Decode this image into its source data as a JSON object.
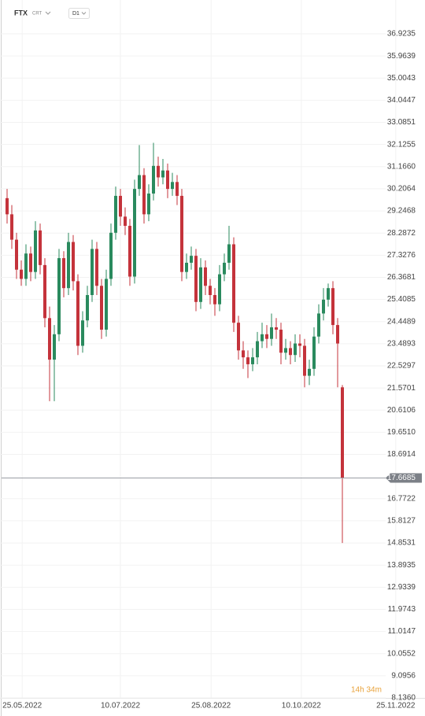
{
  "chart_data": {
    "type": "candlestick",
    "title": "FTX",
    "subtitle": "CRT",
    "timeframe": "D1",
    "open": [
      29.8,
      29.1,
      28.0,
      26.7,
      26.3,
      27.4,
      26.6,
      28.4,
      26.9,
      24.6,
      22.8,
      23.9,
      27.2,
      25.9,
      27.9,
      26.2,
      23.4,
      24.5,
      25.6,
      27.6,
      26.0,
      24.1,
      26.3,
      28.3,
      29.9,
      29.0,
      28.6,
      26.4,
      30.2,
      30.8,
      29.1,
      30.0,
      31.2,
      30.7,
      31.0,
      30.2,
      30.5,
      29.9,
      26.6,
      27.0,
      27.3,
      25.3,
      26.8,
      26.0,
      25.6,
      25.2,
      26.5,
      27.0,
      27.8,
      24.4,
      23.2,
      22.9,
      22.6,
      22.9,
      23.6,
      23.9,
      23.7,
      24.2,
      24.1,
      23.1,
      23.3,
      23.0,
      23.5,
      23.4,
      22.1,
      22.4,
      23.8,
      24.8,
      25.4,
      25.9,
      24.3,
      21.6
    ],
    "high": [
      30.2,
      29.5,
      28.3,
      27.1,
      27.8,
      27.7,
      28.8,
      28.7,
      27.2,
      25.1,
      24.3,
      27.6,
      27.5,
      28.3,
      28.2,
      26.5,
      24.9,
      26.0,
      28.0,
      27.9,
      26.3,
      26.7,
      28.7,
      30.3,
      30.2,
      29.4,
      28.9,
      30.6,
      32.1,
      31.1,
      30.4,
      32.2,
      31.6,
      31.5,
      31.3,
      30.9,
      30.8,
      30.2,
      27.4,
      27.7,
      27.6,
      27.2,
      27.1,
      26.3,
      25.9,
      26.9,
      27.4,
      28.6,
      28.1,
      24.7,
      23.6,
      23.2,
      23.3,
      24.0,
      24.4,
      24.3,
      24.8,
      24.6,
      24.4,
      23.7,
      23.6,
      23.9,
      23.9,
      23.7,
      22.8,
      24.2,
      25.2,
      25.9,
      26.1,
      26.2,
      24.6,
      21.7
    ],
    "low": [
      28.7,
      27.6,
      26.3,
      26.0,
      26.0,
      26.2,
      26.3,
      26.5,
      24.2,
      21.0,
      21.0,
      23.6,
      25.5,
      25.6,
      25.8,
      23.0,
      23.1,
      24.2,
      25.3,
      25.6,
      23.7,
      23.8,
      26.0,
      28.0,
      28.6,
      28.2,
      26.0,
      26.1,
      29.9,
      28.7,
      28.8,
      29.7,
      30.3,
      30.4,
      29.8,
      29.9,
      29.5,
      26.2,
      26.3,
      26.7,
      24.9,
      25.0,
      25.6,
      25.2,
      24.7,
      24.9,
      26.2,
      26.7,
      24.0,
      22.8,
      22.4,
      22.0,
      22.3,
      22.6,
      23.3,
      23.3,
      23.4,
      23.7,
      22.6,
      22.8,
      22.6,
      22.7,
      22.9,
      21.6,
      21.7,
      22.1,
      23.5,
      24.5,
      25.1,
      23.9,
      21.6,
      14.8531
    ],
    "close": [
      29.1,
      28.0,
      26.7,
      26.3,
      27.4,
      26.6,
      28.4,
      26.9,
      24.6,
      22.8,
      23.9,
      27.2,
      25.9,
      27.9,
      26.2,
      23.4,
      24.5,
      25.6,
      27.6,
      26.0,
      24.1,
      26.3,
      28.3,
      29.9,
      29.0,
      28.6,
      26.4,
      30.2,
      30.8,
      29.1,
      30.0,
      31.2,
      30.7,
      31.0,
      30.2,
      30.5,
      29.9,
      26.6,
      27.0,
      27.3,
      25.3,
      26.8,
      26.0,
      25.6,
      25.2,
      26.5,
      27.0,
      27.8,
      24.4,
      23.2,
      22.9,
      22.6,
      22.9,
      23.6,
      23.9,
      23.7,
      24.2,
      24.1,
      23.1,
      23.3,
      23.0,
      23.5,
      23.4,
      22.1,
      22.4,
      23.8,
      24.8,
      25.4,
      25.9,
      24.3,
      23.5,
      17.6685
    ],
    "up_color": "#2a8a5e",
    "down_color": "#c4333b",
    "xlim": [
      -1.5,
      88.5
    ],
    "xticks": [
      {
        "value": 3.2,
        "label": "25.05.2022"
      },
      {
        "value": 24,
        "label": "10.07.2022"
      },
      {
        "value": 43.2,
        "label": "25.08.2022"
      },
      {
        "value": 62.3,
        "label": "10.10.2022"
      },
      {
        "value": 82.3,
        "label": "25.11.2022"
      }
    ],
    "ylim": [
      8.136,
      38.39
    ],
    "yticks": [
      36.9235,
      35.9639,
      35.0043,
      34.0447,
      33.0851,
      32.1255,
      {
        "value": 31.166,
        "label": "31.1660"
      },
      30.2064,
      29.2468,
      28.2872,
      27.3276,
      26.3681,
      25.4085,
      24.4489,
      23.4893,
      22.5297,
      21.5701,
      20.6106,
      {
        "value": 19.651,
        "label": "19.6510"
      },
      18.6914,
      16.7722,
      15.8127,
      14.8531,
      13.8935,
      12.9339,
      11.9743,
      11.0147,
      10.0552,
      9.0956,
      {
        "value": 8.136,
        "label": "8.1360"
      }
    ],
    "grid": true,
    "current_price": 17.6685,
    "countdown": "14h 34m"
  }
}
